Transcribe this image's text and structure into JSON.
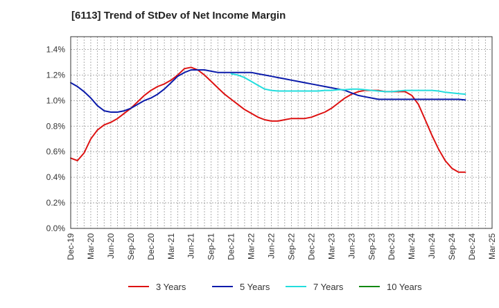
{
  "chart_data": {
    "type": "line",
    "title": "[6113]  Trend of StDev of Net Income Margin",
    "xlabel": "",
    "ylabel": "",
    "x_ticks": [
      "Dec-19",
      "Mar-20",
      "Jun-20",
      "Sep-20",
      "Dec-20",
      "Mar-21",
      "Jun-21",
      "Sep-21",
      "Dec-21",
      "Mar-22",
      "Jun-22",
      "Sep-22",
      "Dec-22",
      "Mar-23",
      "Jun-23",
      "Sep-23",
      "Dec-23",
      "Mar-24",
      "Jun-24",
      "Sep-24",
      "Dec-24",
      "Mar-25"
    ],
    "y_ticks": [
      "0.0%",
      "0.2%",
      "0.4%",
      "0.6%",
      "0.8%",
      "1.0%",
      "1.2%",
      "1.4%"
    ],
    "ylim": [
      0,
      1.5
    ],
    "grid": true,
    "legend_position": "bottom",
    "series": [
      {
        "name": "3 Years",
        "color": "#dd1111",
        "points": [
          [
            "Dec-19",
            0.55
          ],
          [
            "Jan-20",
            0.53
          ],
          [
            "Feb-20",
            0.59
          ],
          [
            "Mar-20",
            0.7
          ],
          [
            "Apr-20",
            0.77
          ],
          [
            "May-20",
            0.81
          ],
          [
            "Jun-20",
            0.83
          ],
          [
            "Jul-20",
            0.86
          ],
          [
            "Aug-20",
            0.9
          ],
          [
            "Sep-20",
            0.94
          ],
          [
            "Oct-20",
            0.99
          ],
          [
            "Nov-20",
            1.04
          ],
          [
            "Dec-20",
            1.08
          ],
          [
            "Jan-21",
            1.11
          ],
          [
            "Feb-21",
            1.13
          ],
          [
            "Mar-21",
            1.16
          ],
          [
            "Apr-21",
            1.2
          ],
          [
            "May-21",
            1.25
          ],
          [
            "Jun-21",
            1.26
          ],
          [
            "Jul-21",
            1.24
          ],
          [
            "Aug-21",
            1.2
          ],
          [
            "Sep-21",
            1.15
          ],
          [
            "Oct-21",
            1.1
          ],
          [
            "Nov-21",
            1.05
          ],
          [
            "Dec-21",
            1.01
          ],
          [
            "Jan-22",
            0.97
          ],
          [
            "Feb-22",
            0.93
          ],
          [
            "Mar-22",
            0.9
          ],
          [
            "Apr-22",
            0.87
          ],
          [
            "May-22",
            0.85
          ],
          [
            "Jun-22",
            0.84
          ],
          [
            "Jul-22",
            0.84
          ],
          [
            "Aug-22",
            0.85
          ],
          [
            "Sep-22",
            0.86
          ],
          [
            "Oct-22",
            0.86
          ],
          [
            "Nov-22",
            0.86
          ],
          [
            "Dec-22",
            0.87
          ],
          [
            "Jan-23",
            0.89
          ],
          [
            "Feb-23",
            0.91
          ],
          [
            "Mar-23",
            0.94
          ],
          [
            "Apr-23",
            0.98
          ],
          [
            "May-23",
            1.02
          ],
          [
            "Jun-23",
            1.05
          ],
          [
            "Jul-23",
            1.07
          ],
          [
            "Aug-23",
            1.08
          ],
          [
            "Sep-23",
            1.08
          ],
          [
            "Oct-23",
            1.08
          ],
          [
            "Nov-23",
            1.07
          ],
          [
            "Dec-23",
            1.07
          ],
          [
            "Jan-24",
            1.07
          ],
          [
            "Feb-24",
            1.07
          ],
          [
            "Mar-24",
            1.04
          ],
          [
            "Apr-24",
            0.97
          ],
          [
            "May-24",
            0.85
          ],
          [
            "Jun-24",
            0.73
          ],
          [
            "Jul-24",
            0.62
          ],
          [
            "Aug-24",
            0.53
          ],
          [
            "Sep-24",
            0.47
          ],
          [
            "Oct-24",
            0.44
          ],
          [
            "Nov-24",
            0.44
          ]
        ]
      },
      {
        "name": "5 Years",
        "color": "#0a1aaa",
        "points": [
          [
            "Dec-19",
            1.14
          ],
          [
            "Jan-20",
            1.11
          ],
          [
            "Feb-20",
            1.07
          ],
          [
            "Mar-20",
            1.02
          ],
          [
            "Apr-20",
            0.96
          ],
          [
            "May-20",
            0.92
          ],
          [
            "Jun-20",
            0.91
          ],
          [
            "Jul-20",
            0.91
          ],
          [
            "Aug-20",
            0.92
          ],
          [
            "Sep-20",
            0.94
          ],
          [
            "Oct-20",
            0.97
          ],
          [
            "Nov-20",
            1.0
          ],
          [
            "Dec-20",
            1.02
          ],
          [
            "Jan-21",
            1.05
          ],
          [
            "Feb-21",
            1.09
          ],
          [
            "Mar-21",
            1.14
          ],
          [
            "Apr-21",
            1.19
          ],
          [
            "May-21",
            1.22
          ],
          [
            "Jun-21",
            1.24
          ],
          [
            "Jul-21",
            1.24
          ],
          [
            "Aug-21",
            1.24
          ],
          [
            "Sep-21",
            1.23
          ],
          [
            "Oct-21",
            1.22
          ],
          [
            "Nov-21",
            1.22
          ],
          [
            "Dec-21",
            1.22
          ],
          [
            "Jan-22",
            1.22
          ],
          [
            "Feb-22",
            1.22
          ],
          [
            "Mar-22",
            1.22
          ],
          [
            "Apr-22",
            1.21
          ],
          [
            "May-22",
            1.2
          ],
          [
            "Jun-22",
            1.19
          ],
          [
            "Jul-22",
            1.18
          ],
          [
            "Aug-22",
            1.17
          ],
          [
            "Sep-22",
            1.16
          ],
          [
            "Oct-22",
            1.15
          ],
          [
            "Nov-22",
            1.14
          ],
          [
            "Dec-22",
            1.13
          ],
          [
            "Jan-23",
            1.12
          ],
          [
            "Feb-23",
            1.11
          ],
          [
            "Mar-23",
            1.1
          ],
          [
            "Apr-23",
            1.09
          ],
          [
            "May-23",
            1.08
          ],
          [
            "Jun-23",
            1.06
          ],
          [
            "Jul-23",
            1.04
          ],
          [
            "Aug-23",
            1.03
          ],
          [
            "Sep-23",
            1.02
          ],
          [
            "Oct-23",
            1.01
          ],
          [
            "Nov-23",
            1.01
          ],
          [
            "Dec-23",
            1.01
          ],
          [
            "Jan-24",
            1.01
          ],
          [
            "Feb-24",
            1.01
          ],
          [
            "Mar-24",
            1.01
          ],
          [
            "Apr-24",
            1.01
          ],
          [
            "May-24",
            1.01
          ],
          [
            "Jun-24",
            1.01
          ],
          [
            "Jul-24",
            1.01
          ],
          [
            "Aug-24",
            1.01
          ],
          [
            "Sep-24",
            1.01
          ],
          [
            "Oct-24",
            1.01
          ],
          [
            "Nov-24",
            1.005
          ]
        ]
      },
      {
        "name": "7 Years",
        "color": "#22dddd",
        "points": [
          [
            "Dec-21",
            1.21
          ],
          [
            "Jan-22",
            1.2
          ],
          [
            "Feb-22",
            1.18
          ],
          [
            "Mar-22",
            1.15
          ],
          [
            "Apr-22",
            1.12
          ],
          [
            "May-22",
            1.09
          ],
          [
            "Jun-22",
            1.08
          ],
          [
            "Jul-22",
            1.075
          ],
          [
            "Aug-22",
            1.075
          ],
          [
            "Sep-22",
            1.075
          ],
          [
            "Oct-22",
            1.075
          ],
          [
            "Nov-22",
            1.075
          ],
          [
            "Dec-22",
            1.075
          ],
          [
            "Jan-23",
            1.075
          ],
          [
            "Feb-23",
            1.08
          ],
          [
            "Mar-23",
            1.08
          ],
          [
            "Apr-23",
            1.085
          ],
          [
            "May-23",
            1.085
          ],
          [
            "Jun-23",
            1.09
          ],
          [
            "Jul-23",
            1.09
          ],
          [
            "Aug-23",
            1.085
          ],
          [
            "Sep-23",
            1.08
          ],
          [
            "Oct-23",
            1.075
          ],
          [
            "Nov-23",
            1.07
          ],
          [
            "Dec-23",
            1.07
          ],
          [
            "Jan-24",
            1.075
          ],
          [
            "Feb-24",
            1.08
          ],
          [
            "Mar-24",
            1.08
          ],
          [
            "Apr-24",
            1.08
          ],
          [
            "May-24",
            1.08
          ],
          [
            "Jun-24",
            1.08
          ],
          [
            "Jul-24",
            1.075
          ],
          [
            "Aug-24",
            1.065
          ],
          [
            "Sep-24",
            1.06
          ],
          [
            "Oct-24",
            1.055
          ],
          [
            "Nov-24",
            1.05
          ]
        ]
      },
      {
        "name": "10 Years",
        "color": "#118811",
        "points": []
      }
    ]
  }
}
